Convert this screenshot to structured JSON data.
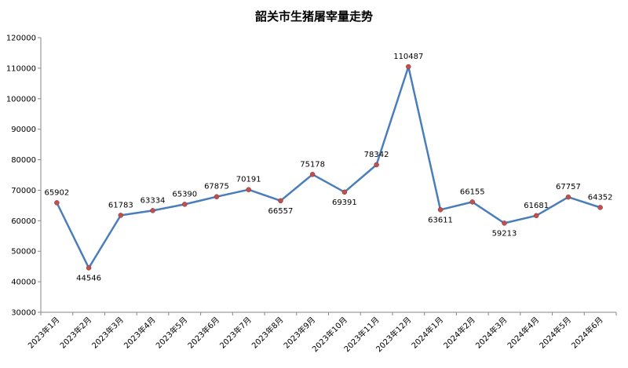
{
  "chart_data": {
    "type": "line",
    "title": "韶关市生猪屠宰量走势",
    "xlabel": "",
    "ylabel": "",
    "ylim": [
      30000,
      120000
    ],
    "ytick_step": 10000,
    "grid": false,
    "legend": "none",
    "categories": [
      "2023年1月",
      "2023年2月",
      "2023年3月",
      "2023年4月",
      "2023年5月",
      "2023年6月",
      "2023年7月",
      "2023年8月",
      "2023年9月",
      "2023年10月",
      "2023年11月",
      "2023年12月",
      "2024年1月",
      "2024年2月",
      "2024年3月",
      "2024年4月",
      "2024年5月",
      "2024年6月"
    ],
    "series": [
      {
        "values": [
          65902,
          44546,
          61783,
          63334,
          65390,
          67875,
          70191,
          66557,
          75178,
          69391,
          78342,
          110487,
          63611,
          66155,
          59213,
          61681,
          67757,
          64352
        ],
        "line_color": "#4a7ebb",
        "marker_color": "#c0504d"
      }
    ]
  }
}
